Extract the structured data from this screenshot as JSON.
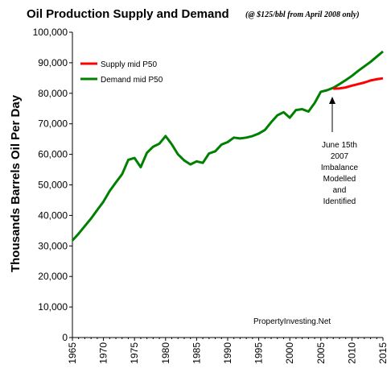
{
  "chart_data": {
    "type": "line",
    "title": "Oil Production Supply and Demand",
    "subtitle": "(@ $125/bbl from April 2008 only)",
    "ylabel": "Thousands Barrels Oil Per Day",
    "xlabel": "",
    "xlim": [
      1965,
      2015
    ],
    "ylim": [
      0,
      100000
    ],
    "x_ticks": [
      "1965",
      "1970",
      "1975",
      "1980",
      "1985",
      "1990",
      "1995",
      "2000",
      "2005",
      "2010",
      "2015"
    ],
    "y_ticks": [
      "0",
      "10,000",
      "20,000",
      "30,000",
      "40,000",
      "50,000",
      "60,000",
      "70,000",
      "80,000",
      "90,000",
      "100,000"
    ],
    "grid": false,
    "legend_position": "top-left",
    "annotation": "June 15th\n2007\nImbalance\nModelled\nand\nIdentified",
    "annotation_x": 2008,
    "source": "PropertyInvesting.Net",
    "series": [
      {
        "name": "Supply mid  P50",
        "color": "#ff0000",
        "points": [
          [
            2007,
            81500
          ],
          [
            2008,
            81600
          ],
          [
            2009,
            81900
          ],
          [
            2010,
            82500
          ],
          [
            2011,
            83000
          ],
          [
            2012,
            83500
          ],
          [
            2013,
            84200
          ],
          [
            2014,
            84600
          ],
          [
            2015,
            84900
          ]
        ]
      },
      {
        "name": "Demand mid  P50",
        "color": "#008000",
        "points": [
          [
            1965,
            31800
          ],
          [
            1966,
            34000
          ],
          [
            1967,
            36500
          ],
          [
            1968,
            39000
          ],
          [
            1969,
            41800
          ],
          [
            1970,
            44500
          ],
          [
            1971,
            48000
          ],
          [
            1972,
            50800
          ],
          [
            1973,
            53500
          ],
          [
            1974,
            58200
          ],
          [
            1975,
            58800
          ],
          [
            1976,
            55800
          ],
          [
            1977,
            60500
          ],
          [
            1978,
            62500
          ],
          [
            1979,
            63500
          ],
          [
            1980,
            66000
          ],
          [
            1981,
            63300
          ],
          [
            1982,
            60000
          ],
          [
            1983,
            58000
          ],
          [
            1984,
            56700
          ],
          [
            1985,
            57700
          ],
          [
            1986,
            57200
          ],
          [
            1987,
            60300
          ],
          [
            1988,
            61000
          ],
          [
            1989,
            63200
          ],
          [
            1990,
            64000
          ],
          [
            1991,
            65500
          ],
          [
            1992,
            65200
          ],
          [
            1993,
            65500
          ],
          [
            1994,
            66000
          ],
          [
            1995,
            66800
          ],
          [
            1996,
            68000
          ],
          [
            1997,
            70500
          ],
          [
            1998,
            72800
          ],
          [
            1999,
            73800
          ],
          [
            2000,
            72000
          ],
          [
            2001,
            74500
          ],
          [
            2002,
            74800
          ],
          [
            2003,
            74000
          ],
          [
            2004,
            76800
          ],
          [
            2005,
            80500
          ],
          [
            2006,
            81000
          ],
          [
            2007,
            81800
          ],
          [
            2008,
            83000
          ],
          [
            2009,
            84300
          ],
          [
            2010,
            85700
          ],
          [
            2011,
            87300
          ],
          [
            2012,
            88800
          ],
          [
            2013,
            90300
          ],
          [
            2014,
            92000
          ],
          [
            2015,
            93700
          ]
        ]
      }
    ]
  }
}
